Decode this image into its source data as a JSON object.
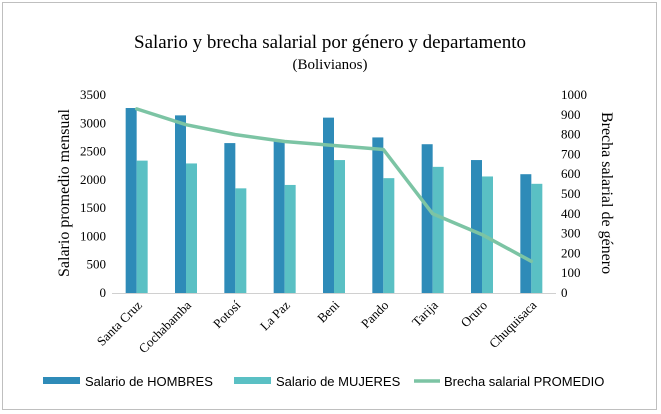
{
  "chart_data": {
    "type": "bar",
    "title": "Salario y brecha salarial por género y departamento",
    "subtitle": "(Bolivianos)",
    "ylabel": "Salario promedio mensual",
    "y2label": "Brecha salarial de género",
    "ylim": [
      0,
      3500
    ],
    "y2lim": [
      0,
      1000
    ],
    "yticks": [
      "0",
      "500",
      "1000",
      "1500",
      "2000",
      "2500",
      "3000",
      "3500"
    ],
    "y2ticks": [
      "0",
      "100",
      "200",
      "300",
      "400",
      "500",
      "600",
      "700",
      "800",
      "900",
      "1000"
    ],
    "categories": [
      "Santa Cruz",
      "Cochabamba",
      "Potosí",
      "La Paz",
      "Beni",
      "Pando",
      "Tarija",
      "Oruro",
      "Chuquisaca"
    ],
    "series": [
      {
        "name": "Salario de HOMBRES",
        "kind": "bar",
        "axis": "left",
        "color": "#2e8bb8",
        "values": [
          3270,
          3140,
          2650,
          2680,
          3100,
          2750,
          2630,
          2350,
          2100
        ]
      },
      {
        "name": "Salario de MUJERES",
        "kind": "bar",
        "axis": "left",
        "color": "#5ac0c4",
        "values": [
          2340,
          2290,
          1850,
          1910,
          2350,
          2030,
          2230,
          2060,
          1930
        ]
      },
      {
        "name": "Brecha salarial PROMEDIO",
        "kind": "line",
        "axis": "right",
        "color": "#7cc4a4",
        "values": [
          930,
          850,
          800,
          765,
          745,
          725,
          400,
          295,
          160
        ]
      }
    ],
    "grid": false,
    "legend": "bottom"
  }
}
